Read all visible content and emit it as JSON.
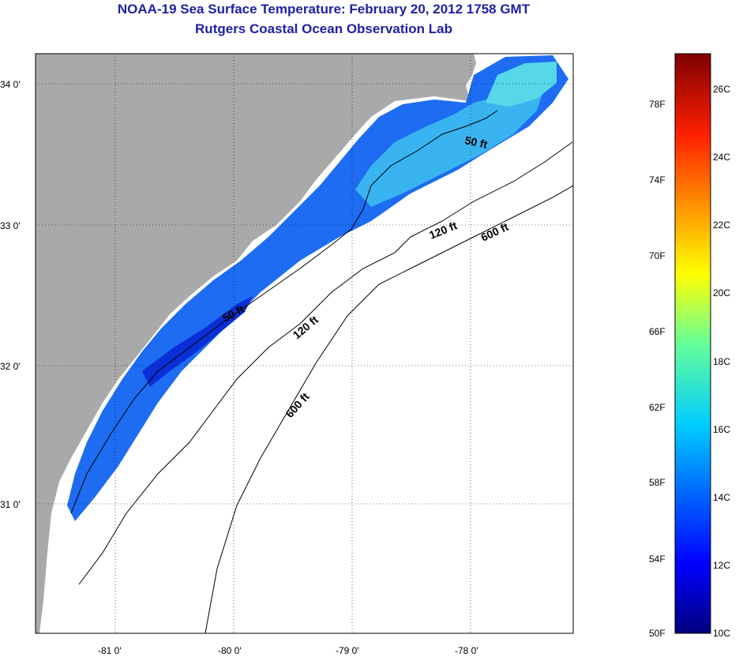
{
  "header": {
    "title": "NOAA-19 Sea Surface Temperature:  February 20, 2012 1758 GMT",
    "subtitle": "Rutgers Coastal Ocean Observation Lab"
  },
  "map": {
    "lon_ticks": [
      "-81 0'",
      "-80 0'",
      "-79 0'",
      "-78 0'"
    ],
    "lat_ticks": [
      "34 0'",
      "33 0'",
      "32 0'",
      "31 0'"
    ],
    "contour_labels": [
      "50 ft",
      "120 ft",
      "600 ft",
      "50 ft",
      "120 ft",
      "600 ft"
    ],
    "colors": {
      "land": "#a9a9a9",
      "no_data": "#ffffff",
      "deep_blue": "#0a2fd6",
      "mid_blue": "#1d6cf2",
      "light_blue": "#3ab4f0",
      "cyan": "#56d8e8"
    }
  },
  "colorbar": {
    "fahrenheit_labels": [
      "78F",
      "74F",
      "70F",
      "66F",
      "62F",
      "58F",
      "54F",
      "50F"
    ],
    "celsius_labels": [
      "26C",
      "24C",
      "22C",
      "20C",
      "18C",
      "16C",
      "14C",
      "12C",
      "10C"
    ],
    "range_c": [
      10,
      27
    ]
  }
}
